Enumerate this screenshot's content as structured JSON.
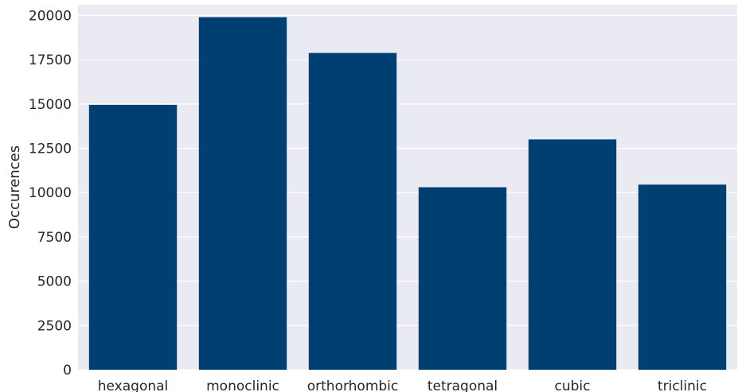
{
  "chart_data": {
    "type": "bar",
    "categories": [
      "hexagonal",
      "monoclinic",
      "orthorhombic",
      "tetragonal",
      "cubic",
      "triclinic"
    ],
    "values": [
      14950,
      19900,
      17880,
      10300,
      13000,
      10450
    ],
    "ylabel": "Occurences",
    "xlabel": "",
    "ylim": [
      0,
      20600
    ],
    "yticks": [
      0,
      2500,
      5000,
      7500,
      10000,
      12500,
      15000,
      17500,
      20000
    ],
    "grid": true,
    "colors": {
      "bar": "#003f72",
      "plot_background": "#eaeaf2",
      "gridline": "#ffffff",
      "text": "#262626"
    }
  }
}
